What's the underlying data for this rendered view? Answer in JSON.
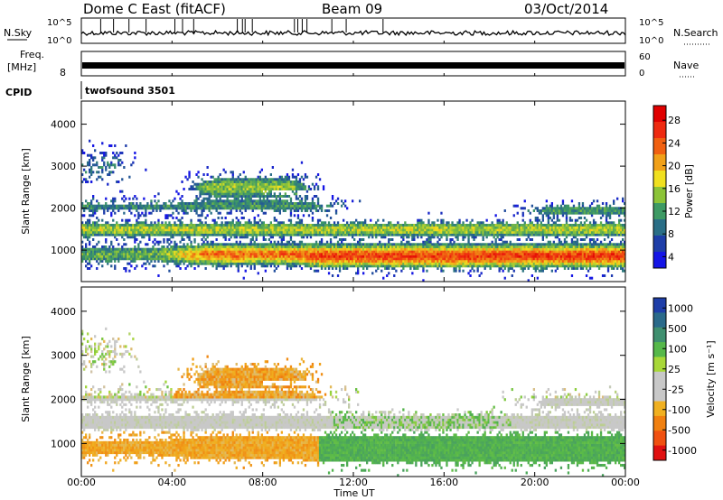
{
  "header": {
    "station": "Dome C East (fitACF)",
    "beam": "Beam 09",
    "date": "03/Oct/2014"
  },
  "top_panels": {
    "nsky_label": "N.Sky",
    "nsky_ticks": [
      "10^5",
      "10^0"
    ],
    "nsearch_label": "N.Search",
    "nsearch_ticks": [
      "10^5",
      "10^0"
    ],
    "freq_label": "Freq.",
    "freq_unit": "[MHz]",
    "freq_ticks": [
      "8"
    ],
    "nave_label": "Nave",
    "nave_ticks": [
      "60",
      "0"
    ],
    "cpid_label": "CPID",
    "cpid_value": "twofsound 3501"
  },
  "chart_data": [
    {
      "type": "heatmap",
      "panel": "power",
      "ylabel": "Slant Range [km]",
      "y_ticks": [
        "1000",
        "2000",
        "3000",
        "4000"
      ],
      "ylim": [
        250,
        4550
      ],
      "xlim_hours": [
        0,
        24
      ],
      "colorbar": {
        "label": "Power [dB]",
        "ticks": [
          "4",
          "8",
          "12",
          "16",
          "20",
          "24",
          "28"
        ],
        "colors": [
          "#1515e6",
          "#1e3ea8",
          "#2a6e86",
          "#3e9a64",
          "#8cc438",
          "#f0e020",
          "#f0a018",
          "#f06010",
          "#ee2a10",
          "#e00000"
        ]
      },
      "bands": [
        {
          "t0": 0.0,
          "t1": 10.0,
          "r0": 400,
          "r1": 900,
          "value": "medium"
        },
        {
          "t0": 5.0,
          "t1": 8.0,
          "r0": 400,
          "r1": 1000,
          "value": "high"
        },
        {
          "t0": 10.0,
          "t1": 21.0,
          "r0": 450,
          "r1": 1400,
          "value": "high"
        },
        {
          "t0": 0.0,
          "t1": 24.0,
          "r0": 1200,
          "r1": 1800,
          "value": "medium"
        },
        {
          "t0": 0.0,
          "t1": 12.0,
          "r0": 1900,
          "r1": 2300,
          "value": "low"
        },
        {
          "t0": 19.5,
          "t1": 24.0,
          "r0": 1700,
          "r1": 2200,
          "value": "medium-high"
        },
        {
          "t0": 4.0,
          "t1": 11.0,
          "r0": 2200,
          "r1": 3000,
          "value": "mixed"
        }
      ]
    },
    {
      "type": "heatmap",
      "panel": "velocity",
      "ylabel": "Slant Range [km]",
      "y_ticks": [
        "1000",
        "2000",
        "3000",
        "4000"
      ],
      "ylim": [
        250,
        4550
      ],
      "xlim_hours": [
        0,
        24
      ],
      "colorbar": {
        "label": "Velocity [m s⁻¹]",
        "ticks": [
          "1000",
          "500",
          "100",
          "25",
          "-25",
          "-100",
          "-500",
          "-1000"
        ],
        "colors": [
          "#1e3ea8",
          "#2a6a8a",
          "#3f8f6f",
          "#56b84a",
          "#a8d838",
          "#c8c8c8",
          "#c8c8c8",
          "#f0b020",
          "#f08010",
          "#f05010",
          "#e01010"
        ]
      },
      "bands": [
        {
          "t0": 0.0,
          "t1": 11.0,
          "r0": 400,
          "r1": 1100,
          "value": "-100 to -500"
        },
        {
          "t0": 11.0,
          "t1": 24.0,
          "r0": 500,
          "r1": 1300,
          "value": "25 to 100"
        },
        {
          "t0": 0.0,
          "t1": 12.0,
          "r0": 1300,
          "r1": 2000,
          "value": "-25 to 25"
        },
        {
          "t0": 5.0,
          "t1": 10.0,
          "r0": 2000,
          "r1": 3000,
          "value": "-100 to -500"
        },
        {
          "t0": 11.0,
          "t1": 19.0,
          "r0": 1300,
          "r1": 2100,
          "value": "mixed"
        }
      ]
    }
  ],
  "x_axis": {
    "ticks": [
      "00:00",
      "04:00",
      "08:00",
      "12:00",
      "16:00",
      "20:00",
      "00:00"
    ],
    "label": "Time UT"
  }
}
